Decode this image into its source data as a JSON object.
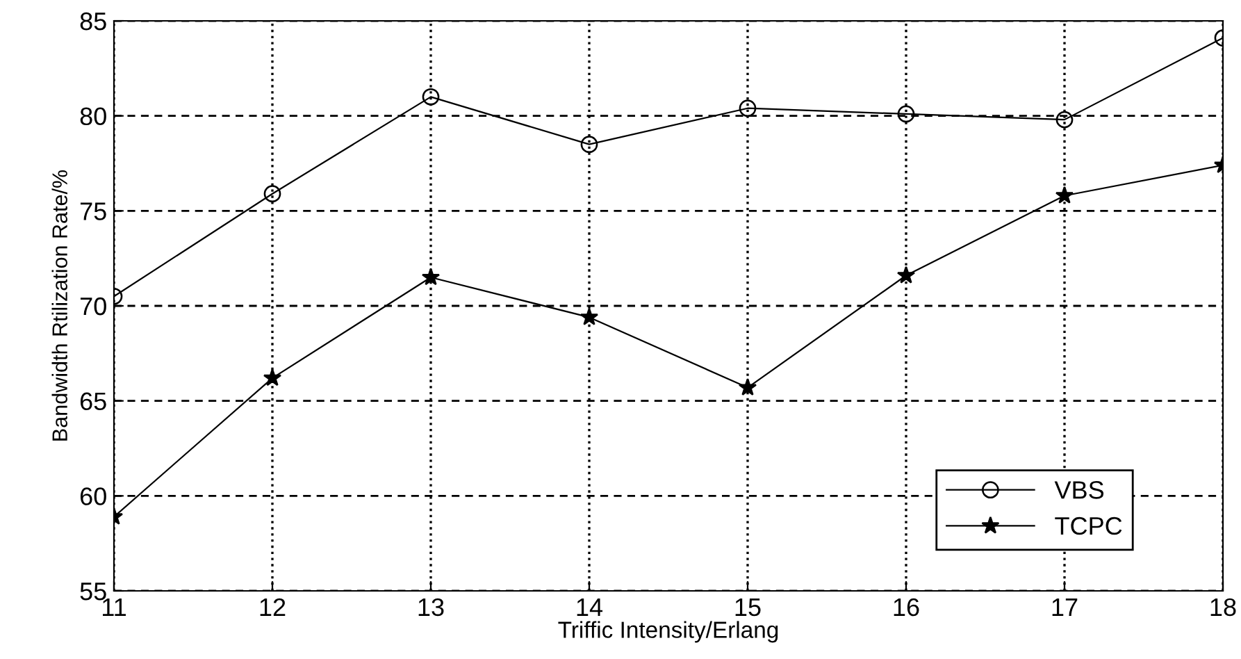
{
  "chart_data": {
    "type": "line",
    "xlabel": "Triffic Intensity/Erlang",
    "ylabel": "Bandwidth Rtilization Rate/%",
    "x": [
      11,
      12,
      13,
      14,
      15,
      16,
      17,
      18
    ],
    "series": [
      {
        "name": "VBS",
        "color": "#000000",
        "marker": "circle",
        "values": [
          70.5,
          75.9,
          81.0,
          78.5,
          80.4,
          80.1,
          79.8,
          84.1
        ]
      },
      {
        "name": "TCPC",
        "color": "#000000",
        "marker": "star",
        "values": [
          58.9,
          66.2,
          71.5,
          69.4,
          65.7,
          71.6,
          75.8,
          77.4
        ]
      }
    ],
    "xlim": [
      11,
      18
    ],
    "xticks": [
      11,
      12,
      13,
      14,
      15,
      16,
      17,
      18
    ],
    "ylim": [
      55,
      85
    ],
    "yticks": [
      55,
      60,
      65,
      70,
      75,
      80,
      85
    ],
    "grid": true,
    "legend": "bottom right",
    "line_style": "solid"
  }
}
